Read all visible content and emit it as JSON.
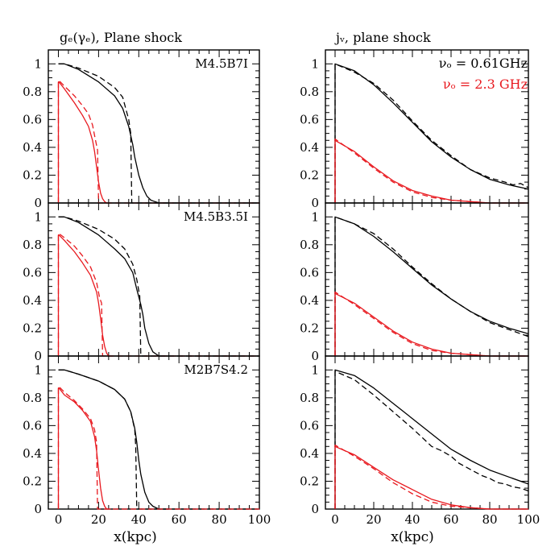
{
  "titles": {
    "left": "gₑ(γₑ), Plane shock",
    "right": "jᵥ, plane shock"
  },
  "xlabel": "x(kpc)",
  "colors": {
    "black": "#000000",
    "red": "#e8181e"
  },
  "legend": [
    {
      "label": "νₒ = 0.61GHz",
      "color": "#000000"
    },
    {
      "label": "νₒ = 2.3 GHz",
      "color": "#e8181e"
    }
  ],
  "chart_data": [
    {
      "type": "line",
      "panel": "left-top",
      "label": "M4.5B7I",
      "xlim": [
        -5,
        100
      ],
      "ylim": [
        0,
        1.1
      ],
      "xticks": [
        0,
        20,
        40,
        60,
        80,
        100
      ],
      "yticks": [
        0,
        0.2,
        0.4,
        0.6,
        0.8,
        1
      ],
      "series": [
        {
          "color": "black",
          "style": "solid",
          "x": [
            0,
            3,
            10,
            20,
            28,
            32,
            35,
            37,
            38,
            40,
            42,
            44,
            46,
            48,
            50,
            55
          ],
          "y": [
            1.0,
            1.0,
            0.96,
            0.87,
            0.77,
            0.68,
            0.55,
            0.42,
            0.33,
            0.2,
            0.11,
            0.05,
            0.02,
            0.01,
            0.0,
            0.0
          ]
        },
        {
          "color": "black",
          "style": "dashed",
          "x": [
            0,
            3,
            10,
            20,
            28,
            32,
            35,
            36,
            36.5,
            37,
            100
          ],
          "y": [
            1.0,
            1.0,
            0.97,
            0.91,
            0.83,
            0.76,
            0.6,
            0.5,
            0.0,
            0.0,
            0.0
          ]
        },
        {
          "color": "red",
          "style": "solid",
          "x": [
            0,
            0,
            0.3,
            3,
            8,
            12,
            15,
            17,
            18,
            19,
            20,
            21,
            22,
            23,
            24,
            26
          ],
          "y": [
            0,
            0.87,
            0.87,
            0.82,
            0.72,
            0.63,
            0.55,
            0.45,
            0.37,
            0.26,
            0.15,
            0.07,
            0.03,
            0.01,
            0.0,
            0.0
          ]
        },
        {
          "color": "red",
          "style": "dashed",
          "x": [
            0,
            0,
            0.3,
            3,
            8,
            12,
            15,
            17,
            18.5,
            19.5,
            20,
            21,
            100
          ],
          "y": [
            0,
            0.88,
            0.88,
            0.84,
            0.77,
            0.7,
            0.64,
            0.56,
            0.45,
            0.38,
            0.0,
            0.0,
            0.0
          ]
        }
      ]
    },
    {
      "type": "line",
      "panel": "left-middle",
      "label": "M4.5B3.5I",
      "xlim": [
        -5,
        100
      ],
      "ylim": [
        0,
        1.1
      ],
      "xticks": [
        0,
        20,
        40,
        60,
        80,
        100
      ],
      "yticks": [
        0,
        0.2,
        0.4,
        0.6,
        0.8,
        1
      ],
      "series": [
        {
          "color": "black",
          "style": "solid",
          "x": [
            0,
            3,
            10,
            20,
            28,
            33,
            37,
            39,
            41,
            42,
            43,
            45,
            47,
            50,
            55
          ],
          "y": [
            1.0,
            1.0,
            0.96,
            0.87,
            0.77,
            0.7,
            0.6,
            0.48,
            0.37,
            0.3,
            0.2,
            0.09,
            0.03,
            0.0,
            0.0
          ]
        },
        {
          "color": "black",
          "style": "dashed",
          "x": [
            0,
            3,
            10,
            20,
            28,
            33,
            37,
            39,
            40.5,
            41,
            100
          ],
          "y": [
            1.0,
            1.0,
            0.97,
            0.91,
            0.84,
            0.77,
            0.66,
            0.55,
            0.43,
            0.0,
            0.0
          ]
        },
        {
          "color": "red",
          "style": "solid",
          "x": [
            0,
            0,
            0.3,
            3,
            8,
            12,
            16,
            19,
            20,
            21,
            22,
            23,
            24,
            25,
            27
          ],
          "y": [
            0,
            0.87,
            0.87,
            0.83,
            0.75,
            0.67,
            0.58,
            0.46,
            0.38,
            0.27,
            0.15,
            0.07,
            0.02,
            0.0,
            0.0
          ]
        },
        {
          "color": "red",
          "style": "dashed",
          "x": [
            0,
            0,
            0.3,
            3,
            8,
            12,
            16,
            19,
            20.5,
            21.5,
            22,
            100
          ],
          "y": [
            0,
            0.88,
            0.88,
            0.85,
            0.79,
            0.72,
            0.64,
            0.53,
            0.42,
            0.38,
            0.0,
            0.0
          ]
        }
      ]
    },
    {
      "type": "line",
      "panel": "left-bottom",
      "label": "M2B7S4.2",
      "xlim": [
        -5,
        100
      ],
      "ylim": [
        0,
        1.1
      ],
      "xticks": [
        0,
        20,
        40,
        60,
        80,
        100
      ],
      "yticks": [
        0,
        0.2,
        0.4,
        0.6,
        0.8,
        1
      ],
      "series": [
        {
          "color": "black",
          "style": "solid",
          "x": [
            0,
            3,
            10,
            20,
            28,
            33,
            36,
            38,
            39,
            40,
            41,
            43,
            45,
            47,
            50,
            55
          ],
          "y": [
            1.0,
            1.0,
            0.97,
            0.92,
            0.86,
            0.79,
            0.7,
            0.58,
            0.48,
            0.35,
            0.25,
            0.12,
            0.05,
            0.02,
            0.0,
            0.0
          ]
        },
        {
          "color": "black",
          "style": "dashed",
          "x": [
            0,
            3,
            10,
            20,
            28,
            33,
            36,
            38,
            38.5,
            39,
            100
          ],
          "y": [
            1.0,
            1.0,
            0.97,
            0.92,
            0.86,
            0.79,
            0.7,
            0.57,
            0.45,
            0.0,
            0.0
          ]
        },
        {
          "color": "red",
          "style": "solid",
          "x": [
            0,
            0,
            0.3,
            3,
            8,
            12,
            16,
            18,
            19,
            20,
            21,
            22,
            23,
            24,
            26
          ],
          "y": [
            0,
            0.87,
            0.87,
            0.82,
            0.77,
            0.71,
            0.63,
            0.52,
            0.42,
            0.28,
            0.15,
            0.06,
            0.02,
            0.0,
            0.0
          ]
        },
        {
          "color": "red",
          "style": "dashed",
          "x": [
            0,
            0,
            0.3,
            3,
            8,
            12,
            16,
            18,
            19,
            19.5,
            100
          ],
          "y": [
            0,
            0.88,
            0.88,
            0.84,
            0.78,
            0.72,
            0.65,
            0.57,
            0.48,
            0.0,
            0.0
          ]
        }
      ]
    },
    {
      "type": "line",
      "panel": "right-top",
      "xlim": [
        -5,
        100
      ],
      "ylim": [
        0,
        1.1
      ],
      "xticks": [
        0,
        20,
        40,
        60,
        80,
        100
      ],
      "yticks": [
        0,
        0.2,
        0.4,
        0.6,
        0.8,
        1
      ],
      "series": [
        {
          "color": "black",
          "style": "solid",
          "x": [
            0,
            0,
            10,
            20,
            30,
            40,
            50,
            60,
            70,
            80,
            90,
            100
          ],
          "y": [
            0,
            1.0,
            0.95,
            0.85,
            0.72,
            0.58,
            0.44,
            0.33,
            0.24,
            0.17,
            0.13,
            0.1
          ]
        },
        {
          "color": "black",
          "style": "dashed",
          "x": [
            0,
            0,
            10,
            20,
            30,
            40,
            50,
            60,
            70,
            80,
            88,
            92,
            96,
            100
          ],
          "y": [
            0,
            1.0,
            0.94,
            0.86,
            0.74,
            0.59,
            0.45,
            0.34,
            0.24,
            0.18,
            0.15,
            0.13,
            0.14,
            0.11
          ]
        },
        {
          "color": "red",
          "style": "solid",
          "x": [
            0,
            0,
            10,
            20,
            30,
            40,
            50,
            60,
            70,
            80,
            90,
            100
          ],
          "y": [
            0,
            0.45,
            0.37,
            0.26,
            0.16,
            0.09,
            0.05,
            0.02,
            0.01,
            0.0,
            0.0,
            0.0
          ]
        },
        {
          "color": "red",
          "style": "dashed",
          "x": [
            0,
            0,
            10,
            20,
            30,
            40,
            50,
            60,
            70,
            80,
            90,
            100
          ],
          "y": [
            0,
            0.46,
            0.36,
            0.25,
            0.15,
            0.08,
            0.04,
            0.02,
            0.01,
            0.0,
            0.0,
            0.0
          ]
        }
      ]
    },
    {
      "type": "line",
      "panel": "right-middle",
      "xlim": [
        -5,
        100
      ],
      "ylim": [
        0,
        1.1
      ],
      "xticks": [
        0,
        20,
        40,
        60,
        80,
        100
      ],
      "yticks": [
        0,
        0.2,
        0.4,
        0.6,
        0.8,
        1
      ],
      "series": [
        {
          "color": "black",
          "style": "solid",
          "x": [
            0,
            0,
            10,
            20,
            30,
            40,
            50,
            60,
            70,
            80,
            90,
            100
          ],
          "y": [
            0,
            1.0,
            0.95,
            0.86,
            0.75,
            0.63,
            0.51,
            0.41,
            0.32,
            0.25,
            0.2,
            0.16
          ]
        },
        {
          "color": "black",
          "style": "dashed",
          "x": [
            0,
            0,
            10,
            20,
            30,
            40,
            50,
            60,
            70,
            80,
            88,
            92,
            96,
            100
          ],
          "y": [
            0,
            1.0,
            0.95,
            0.88,
            0.77,
            0.64,
            0.52,
            0.41,
            0.32,
            0.24,
            0.2,
            0.18,
            0.16,
            0.14
          ]
        },
        {
          "color": "red",
          "style": "solid",
          "x": [
            0,
            0,
            10,
            20,
            30,
            40,
            50,
            60,
            70,
            80,
            90,
            100
          ],
          "y": [
            0,
            0.45,
            0.38,
            0.28,
            0.18,
            0.1,
            0.05,
            0.02,
            0.01,
            0.0,
            0.0,
            0.0
          ]
        },
        {
          "color": "red",
          "style": "dashed",
          "x": [
            0,
            0,
            10,
            20,
            30,
            40,
            50,
            60,
            70,
            80,
            90,
            100
          ],
          "y": [
            0,
            0.46,
            0.37,
            0.27,
            0.17,
            0.09,
            0.04,
            0.02,
            0.01,
            0.0,
            0.0,
            0.0
          ]
        }
      ]
    },
    {
      "type": "line",
      "panel": "right-bottom",
      "xlim": [
        -5,
        100
      ],
      "ylim": [
        0,
        1.1
      ],
      "xticks": [
        0,
        20,
        40,
        60,
        80,
        100
      ],
      "yticks": [
        0,
        0.2,
        0.4,
        0.6,
        0.8,
        1
      ],
      "series": [
        {
          "color": "black",
          "style": "solid",
          "x": [
            0,
            0,
            10,
            20,
            30,
            40,
            50,
            60,
            70,
            80,
            90,
            100
          ],
          "y": [
            0,
            1.0,
            0.96,
            0.87,
            0.76,
            0.65,
            0.54,
            0.43,
            0.35,
            0.28,
            0.23,
            0.18
          ]
        },
        {
          "color": "black",
          "style": "dashed",
          "x": [
            0,
            0,
            10,
            20,
            30,
            40,
            50,
            55,
            60,
            64,
            68,
            72,
            76,
            80,
            84,
            88,
            92,
            96,
            100
          ],
          "y": [
            0,
            0.99,
            0.93,
            0.82,
            0.7,
            0.58,
            0.45,
            0.42,
            0.38,
            0.33,
            0.3,
            0.27,
            0.24,
            0.22,
            0.19,
            0.18,
            0.16,
            0.15,
            0.13
          ]
        },
        {
          "color": "red",
          "style": "solid",
          "x": [
            0,
            0,
            10,
            20,
            30,
            40,
            50,
            60,
            70,
            80,
            90,
            100
          ],
          "y": [
            0,
            0.45,
            0.39,
            0.3,
            0.21,
            0.14,
            0.07,
            0.03,
            0.01,
            0.0,
            0.0,
            0.0
          ]
        },
        {
          "color": "red",
          "style": "dashed",
          "x": [
            0,
            0,
            10,
            20,
            30,
            40,
            50,
            60,
            70,
            80,
            90,
            100
          ],
          "y": [
            0,
            0.46,
            0.38,
            0.29,
            0.19,
            0.11,
            0.05,
            0.02,
            0.01,
            0.0,
            0.0,
            0.0
          ]
        }
      ]
    }
  ]
}
